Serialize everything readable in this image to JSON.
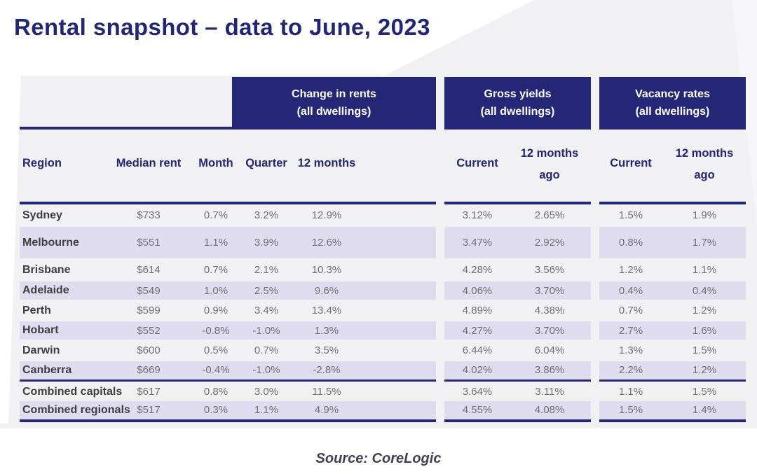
{
  "title": "Rental snapshot – data to June, 2023",
  "source_credit": "Source: CoreLogic",
  "colors": {
    "page_bg": "#f1f1f3",
    "navy": "#242776",
    "lavender": "#dfdcf0",
    "title_text": "#232771",
    "region_text": "#3e3e40",
    "value_text": "#707073",
    "source_text": "#3e4354",
    "header_text_on_navy": "#ffffff"
  },
  "table": {
    "group_headers": [
      {
        "line1": "Change in rents",
        "line2": "(all dwellings)"
      },
      {
        "line1": "Gross yields",
        "line2": "(all dwellings)"
      },
      {
        "line1": "Vacancy rates",
        "line2": "(all dwellings)"
      }
    ],
    "columns": {
      "region": "Region",
      "median_rent": "Median rent",
      "month": "Month",
      "quarter": "Quarter",
      "twelve_months": "12 months",
      "current": "Current",
      "ago_line1": "12 months",
      "ago_line2": "ago"
    },
    "rows": [
      {
        "region": "Sydney",
        "median_rent": "$733",
        "month": "0.7%",
        "quarter": "3.2%",
        "twelve_months": "12.9%",
        "gy_current": "3.12%",
        "gy_ago": "2.65%",
        "vr_current": "1.5%",
        "vr_ago": "1.9%"
      },
      {
        "region": "Melbourne",
        "median_rent": "$551",
        "month": "1.1%",
        "quarter": "3.9%",
        "twelve_months": "12.6%",
        "gy_current": "3.47%",
        "gy_ago": "2.92%",
        "vr_current": "0.8%",
        "vr_ago": "1.7%"
      },
      {
        "region": "Brisbane",
        "median_rent": "$614",
        "month": "0.7%",
        "quarter": "2.1%",
        "twelve_months": "10.3%",
        "gy_current": "4.28%",
        "gy_ago": "3.56%",
        "vr_current": "1.2%",
        "vr_ago": "1.1%"
      },
      {
        "region": "Adelaide",
        "median_rent": "$549",
        "month": "1.0%",
        "quarter": "2.5%",
        "twelve_months": "9.6%",
        "gy_current": "4.06%",
        "gy_ago": "3.70%",
        "vr_current": "0.4%",
        "vr_ago": "0.4%"
      },
      {
        "region": "Perth",
        "median_rent": "$599",
        "month": "0.9%",
        "quarter": "3.4%",
        "twelve_months": "13.4%",
        "gy_current": "4.89%",
        "gy_ago": "4.38%",
        "vr_current": "0.7%",
        "vr_ago": "1.2%"
      },
      {
        "region": "Hobart",
        "median_rent": "$552",
        "month": "-0.8%",
        "quarter": "-1.0%",
        "twelve_months": "1.3%",
        "gy_current": "4.27%",
        "gy_ago": "3.70%",
        "vr_current": "2.7%",
        "vr_ago": "1.6%"
      },
      {
        "region": "Darwin",
        "median_rent": "$600",
        "month": "0.5%",
        "quarter": "0.7%",
        "twelve_months": "3.5%",
        "gy_current": "6.44%",
        "gy_ago": "6.04%",
        "vr_current": "1.3%",
        "vr_ago": "1.5%"
      },
      {
        "region": "Canberra",
        "median_rent": "$669",
        "month": "-0.4%",
        "quarter": "-1.0%",
        "twelve_months": "-2.8%",
        "gy_current": "4.02%",
        "gy_ago": "3.86%",
        "vr_current": "2.2%",
        "vr_ago": "1.2%"
      },
      {
        "region": "Combined capitals",
        "median_rent": "$617",
        "month": "0.8%",
        "quarter": "3.0%",
        "twelve_months": "11.5%",
        "gy_current": "3.64%",
        "gy_ago": "3.11%",
        "vr_current": "1.1%",
        "vr_ago": "1.5%"
      },
      {
        "region": "Combined regionals",
        "median_rent": "$517",
        "month": "0.3%",
        "quarter": "1.1%",
        "twelve_months": "4.9%",
        "gy_current": "4.55%",
        "gy_ago": "4.08%",
        "vr_current": "1.5%",
        "vr_ago": "1.4%"
      }
    ]
  },
  "chart_data": {
    "type": "table",
    "title": "Rental snapshot – data to June, 2023",
    "column_groups": [
      "",
      "Change in rents (all dwellings)",
      "Gross yields (all dwellings)",
      "Vacancy rates (all dwellings)"
    ],
    "columns": [
      "Region",
      "Median rent",
      "Month",
      "Quarter",
      "12 months",
      "Current",
      "12 months ago",
      "Current",
      "12 months ago"
    ],
    "rows": [
      [
        "Sydney",
        "$733",
        "0.7%",
        "3.2%",
        "12.9%",
        "3.12%",
        "2.65%",
        "1.5%",
        "1.9%"
      ],
      [
        "Melbourne",
        "$551",
        "1.1%",
        "3.9%",
        "12.6%",
        "3.47%",
        "2.92%",
        "0.8%",
        "1.7%"
      ],
      [
        "Brisbane",
        "$614",
        "0.7%",
        "2.1%",
        "10.3%",
        "4.28%",
        "3.56%",
        "1.2%",
        "1.1%"
      ],
      [
        "Adelaide",
        "$549",
        "1.0%",
        "2.5%",
        "9.6%",
        "4.06%",
        "3.70%",
        "0.4%",
        "0.4%"
      ],
      [
        "Perth",
        "$599",
        "0.9%",
        "3.4%",
        "13.4%",
        "4.89%",
        "4.38%",
        "0.7%",
        "1.2%"
      ],
      [
        "Hobart",
        "$552",
        "-0.8%",
        "-1.0%",
        "1.3%",
        "4.27%",
        "3.70%",
        "2.7%",
        "1.6%"
      ],
      [
        "Darwin",
        "$600",
        "0.5%",
        "0.7%",
        "3.5%",
        "6.44%",
        "6.04%",
        "1.3%",
        "1.5%"
      ],
      [
        "Canberra",
        "$669",
        "-0.4%",
        "-1.0%",
        "-2.8%",
        "4.02%",
        "3.86%",
        "2.2%",
        "1.2%"
      ],
      [
        "Combined capitals",
        "$617",
        "0.8%",
        "3.0%",
        "11.5%",
        "3.64%",
        "3.11%",
        "1.1%",
        "1.5%"
      ],
      [
        "Combined regionals",
        "$517",
        "0.3%",
        "1.1%",
        "4.9%",
        "4.55%",
        "4.08%",
        "1.5%",
        "1.4%"
      ]
    ],
    "source": "Source: CoreLogic"
  }
}
